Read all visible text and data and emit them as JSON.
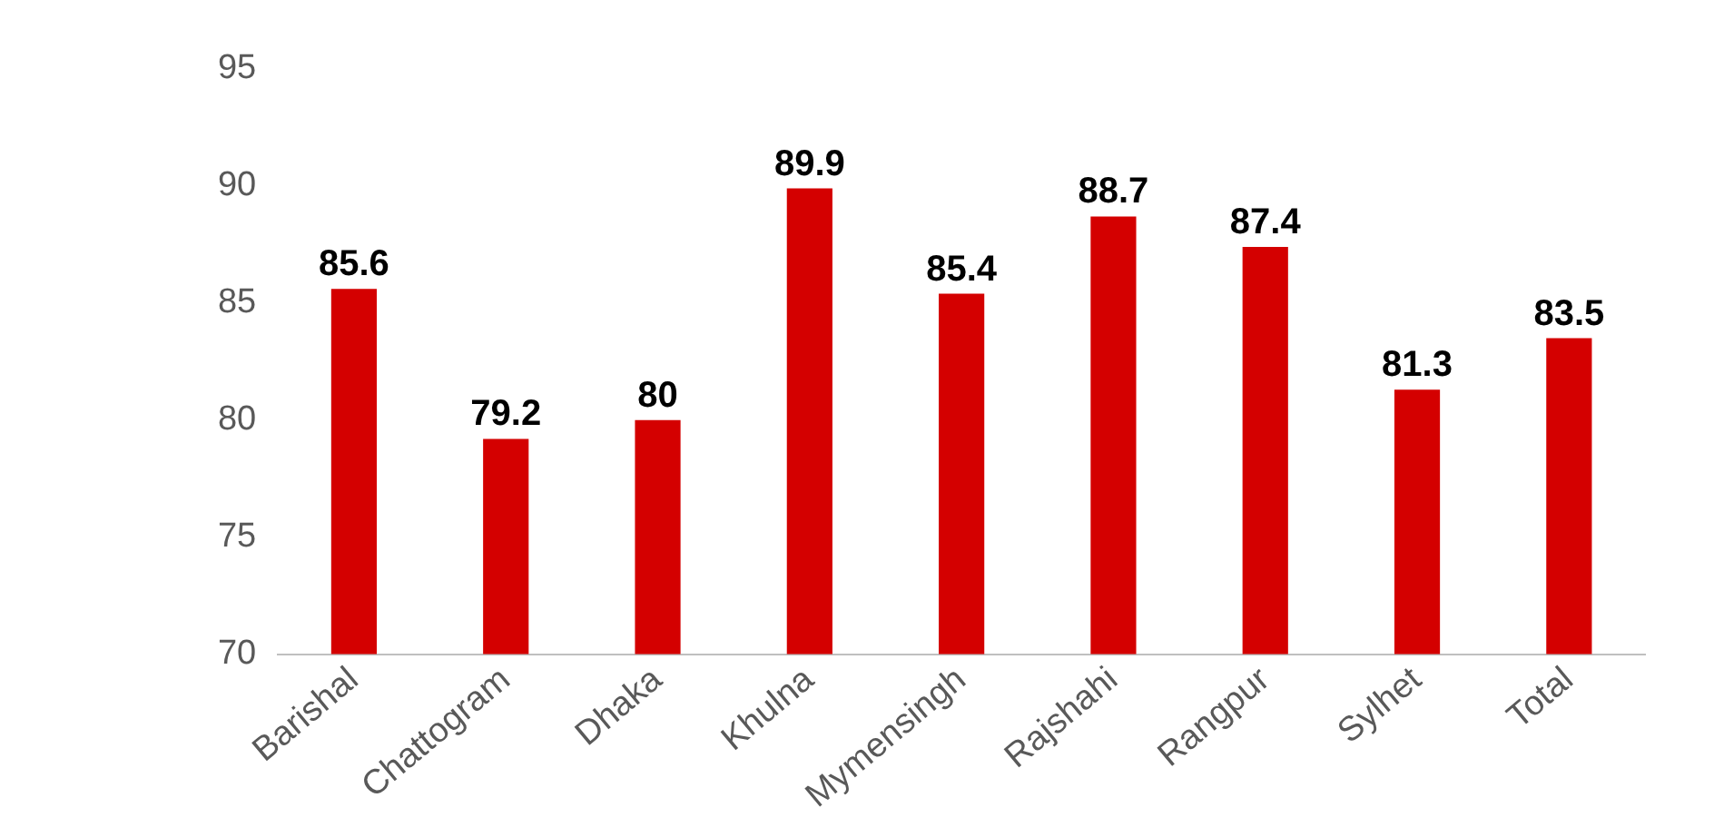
{
  "chart_data": {
    "type": "bar",
    "categories": [
      "Barishal",
      "Chattogram",
      "Dhaka",
      "Khulna",
      "Mymensingh",
      "Rajshahi",
      "Rangpur",
      "Sylhet",
      "Total"
    ],
    "values": [
      85.6,
      79.2,
      80,
      89.9,
      85.4,
      88.7,
      87.4,
      81.3,
      83.5
    ],
    "color": "#d40000",
    "ylim": [
      70,
      95
    ],
    "yticks": [
      70,
      75,
      80,
      85,
      90,
      95
    ],
    "grid": false,
    "legend": false,
    "data_labels": true
  }
}
